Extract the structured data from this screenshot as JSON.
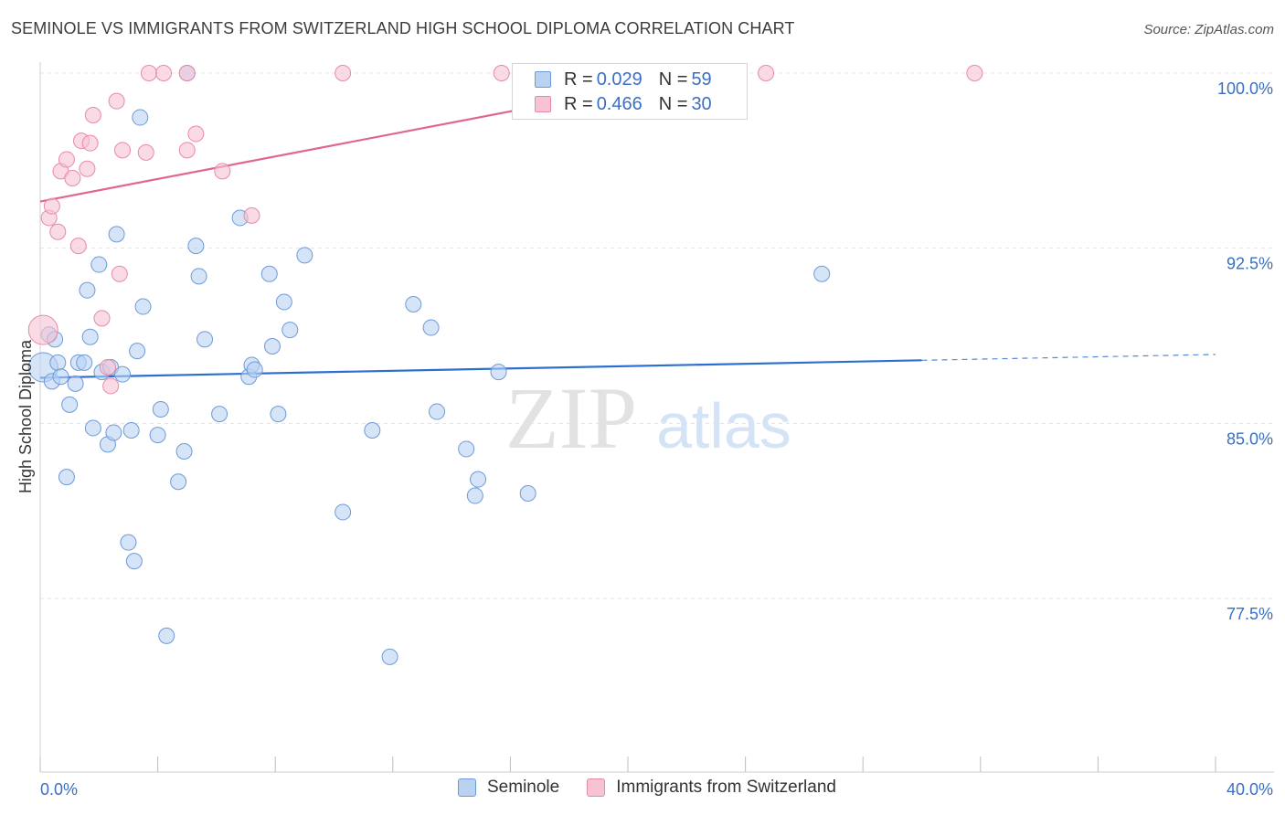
{
  "header": {
    "title": "SEMINOLE VS IMMIGRANTS FROM SWITZERLAND HIGH SCHOOL DIPLOMA CORRELATION CHART",
    "source": "Source: ZipAtlas.com"
  },
  "watermark": {
    "zip": "ZIP",
    "atlas": "atlas"
  },
  "legend_stats": {
    "r_label": "R =",
    "n_label": "N =",
    "rows": [
      {
        "r": "0.029",
        "n": "59"
      },
      {
        "r": "0.466",
        "n": "30"
      }
    ]
  },
  "colors": {
    "seminole_fill": "#b9d2f2",
    "seminole_stroke": "#6f9ad9",
    "seminole_line": "#2c6fcf",
    "swiss_fill": "#f7c3d3",
    "swiss_stroke": "#e68aa8",
    "swiss_line": "#e0668f",
    "grid": "#e3e3e3",
    "tick_label": "#3a6fc4"
  },
  "chart_data": {
    "type": "scatter",
    "title": "SEMINOLE VS IMMIGRANTS FROM SWITZERLAND HIGH SCHOOL DIPLOMA CORRELATION CHART",
    "xlabel": "",
    "ylabel": "High School Diploma",
    "xlim": [
      0,
      40
    ],
    "ylim": [
      71.5,
      101
    ],
    "x_tick_labels": [
      "0.0%",
      "40.0%"
    ],
    "y_ticks": [
      {
        "value": 77.5,
        "label": "77.5%"
      },
      {
        "value": 85.0,
        "label": "85.0%"
      },
      {
        "value": 92.5,
        "label": "92.5%"
      },
      {
        "value": 100.0,
        "label": "100.0%"
      }
    ],
    "grid": true,
    "legend_position": "bottom-center",
    "series": [
      {
        "name": "Seminole",
        "r": 0.029,
        "n": 59,
        "trend": {
          "x0": 0,
          "y0": 86.95,
          "x1": 30,
          "y1": 87.7,
          "dash_to_x": 40,
          "dash_to_y": 87.95
        },
        "points": [
          [
            0.1,
            87.4
          ],
          [
            0.3,
            88.8
          ],
          [
            0.4,
            86.8
          ],
          [
            0.5,
            88.6
          ],
          [
            0.6,
            87.6
          ],
          [
            0.7,
            87.0
          ],
          [
            0.9,
            82.7
          ],
          [
            1.0,
            85.8
          ],
          [
            1.2,
            86.7
          ],
          [
            1.3,
            87.6
          ],
          [
            1.5,
            87.6
          ],
          [
            1.6,
            90.7
          ],
          [
            1.7,
            88.7
          ],
          [
            1.8,
            84.8
          ],
          [
            2.0,
            91.8
          ],
          [
            2.1,
            87.2
          ],
          [
            2.3,
            84.1
          ],
          [
            2.4,
            87.4
          ],
          [
            2.6,
            93.1
          ],
          [
            2.5,
            84.6
          ],
          [
            2.8,
            87.1
          ],
          [
            3.0,
            79.9
          ],
          [
            3.1,
            84.7
          ],
          [
            3.2,
            79.1
          ],
          [
            3.3,
            88.1
          ],
          [
            3.4,
            98.1
          ],
          [
            3.5,
            90.0
          ],
          [
            4.0,
            84.5
          ],
          [
            4.1,
            85.6
          ],
          [
            4.3,
            75.9
          ],
          [
            4.7,
            82.5
          ],
          [
            4.9,
            83.8
          ],
          [
            5.0,
            100.0
          ],
          [
            5.3,
            92.6
          ],
          [
            5.4,
            91.3
          ],
          [
            5.6,
            88.6
          ],
          [
            6.1,
            85.4
          ],
          [
            6.8,
            93.8
          ],
          [
            7.1,
            87.0
          ],
          [
            7.2,
            87.5
          ],
          [
            7.3,
            87.3
          ],
          [
            7.8,
            91.4
          ],
          [
            7.9,
            88.3
          ],
          [
            8.1,
            85.4
          ],
          [
            8.3,
            90.2
          ],
          [
            8.5,
            89.0
          ],
          [
            9.0,
            92.2
          ],
          [
            10.3,
            81.2
          ],
          [
            11.3,
            84.7
          ],
          [
            11.9,
            75.0
          ],
          [
            12.7,
            90.1
          ],
          [
            13.3,
            89.1
          ],
          [
            13.5,
            85.5
          ],
          [
            14.5,
            83.9
          ],
          [
            14.8,
            81.9
          ],
          [
            14.9,
            82.6
          ],
          [
            15.6,
            87.2
          ],
          [
            16.6,
            82.0
          ],
          [
            26.6,
            91.4
          ]
        ]
      },
      {
        "name": "Immigrants from Switzerland",
        "r": 0.466,
        "n": 30,
        "trend": {
          "x0": 0,
          "y0": 94.5,
          "x1": 22.8,
          "y1": 100.0
        },
        "points": [
          [
            0.1,
            89.0
          ],
          [
            0.3,
            93.8
          ],
          [
            0.4,
            94.3
          ],
          [
            0.6,
            93.2
          ],
          [
            0.7,
            95.8
          ],
          [
            0.9,
            96.3
          ],
          [
            1.1,
            95.5
          ],
          [
            1.3,
            92.6
          ],
          [
            1.4,
            97.1
          ],
          [
            1.6,
            95.9
          ],
          [
            1.7,
            97.0
          ],
          [
            1.8,
            98.2
          ],
          [
            2.1,
            89.5
          ],
          [
            2.3,
            87.4
          ],
          [
            2.4,
            86.6
          ],
          [
            2.6,
            98.8
          ],
          [
            2.7,
            91.4
          ],
          [
            2.8,
            96.7
          ],
          [
            3.6,
            96.6
          ],
          [
            3.7,
            100.0
          ],
          [
            4.2,
            100.0
          ],
          [
            5.0,
            100.0
          ],
          [
            5.0,
            96.7
          ],
          [
            5.3,
            97.4
          ],
          [
            6.2,
            95.8
          ],
          [
            7.2,
            93.9
          ],
          [
            10.3,
            100.0
          ],
          [
            15.7,
            100.0
          ],
          [
            24.7,
            100.0
          ],
          [
            31.8,
            100.0
          ]
        ]
      }
    ]
  },
  "bottom_legend": {
    "items": [
      {
        "label": "Seminole"
      },
      {
        "label": "Immigrants from Switzerland"
      }
    ]
  }
}
